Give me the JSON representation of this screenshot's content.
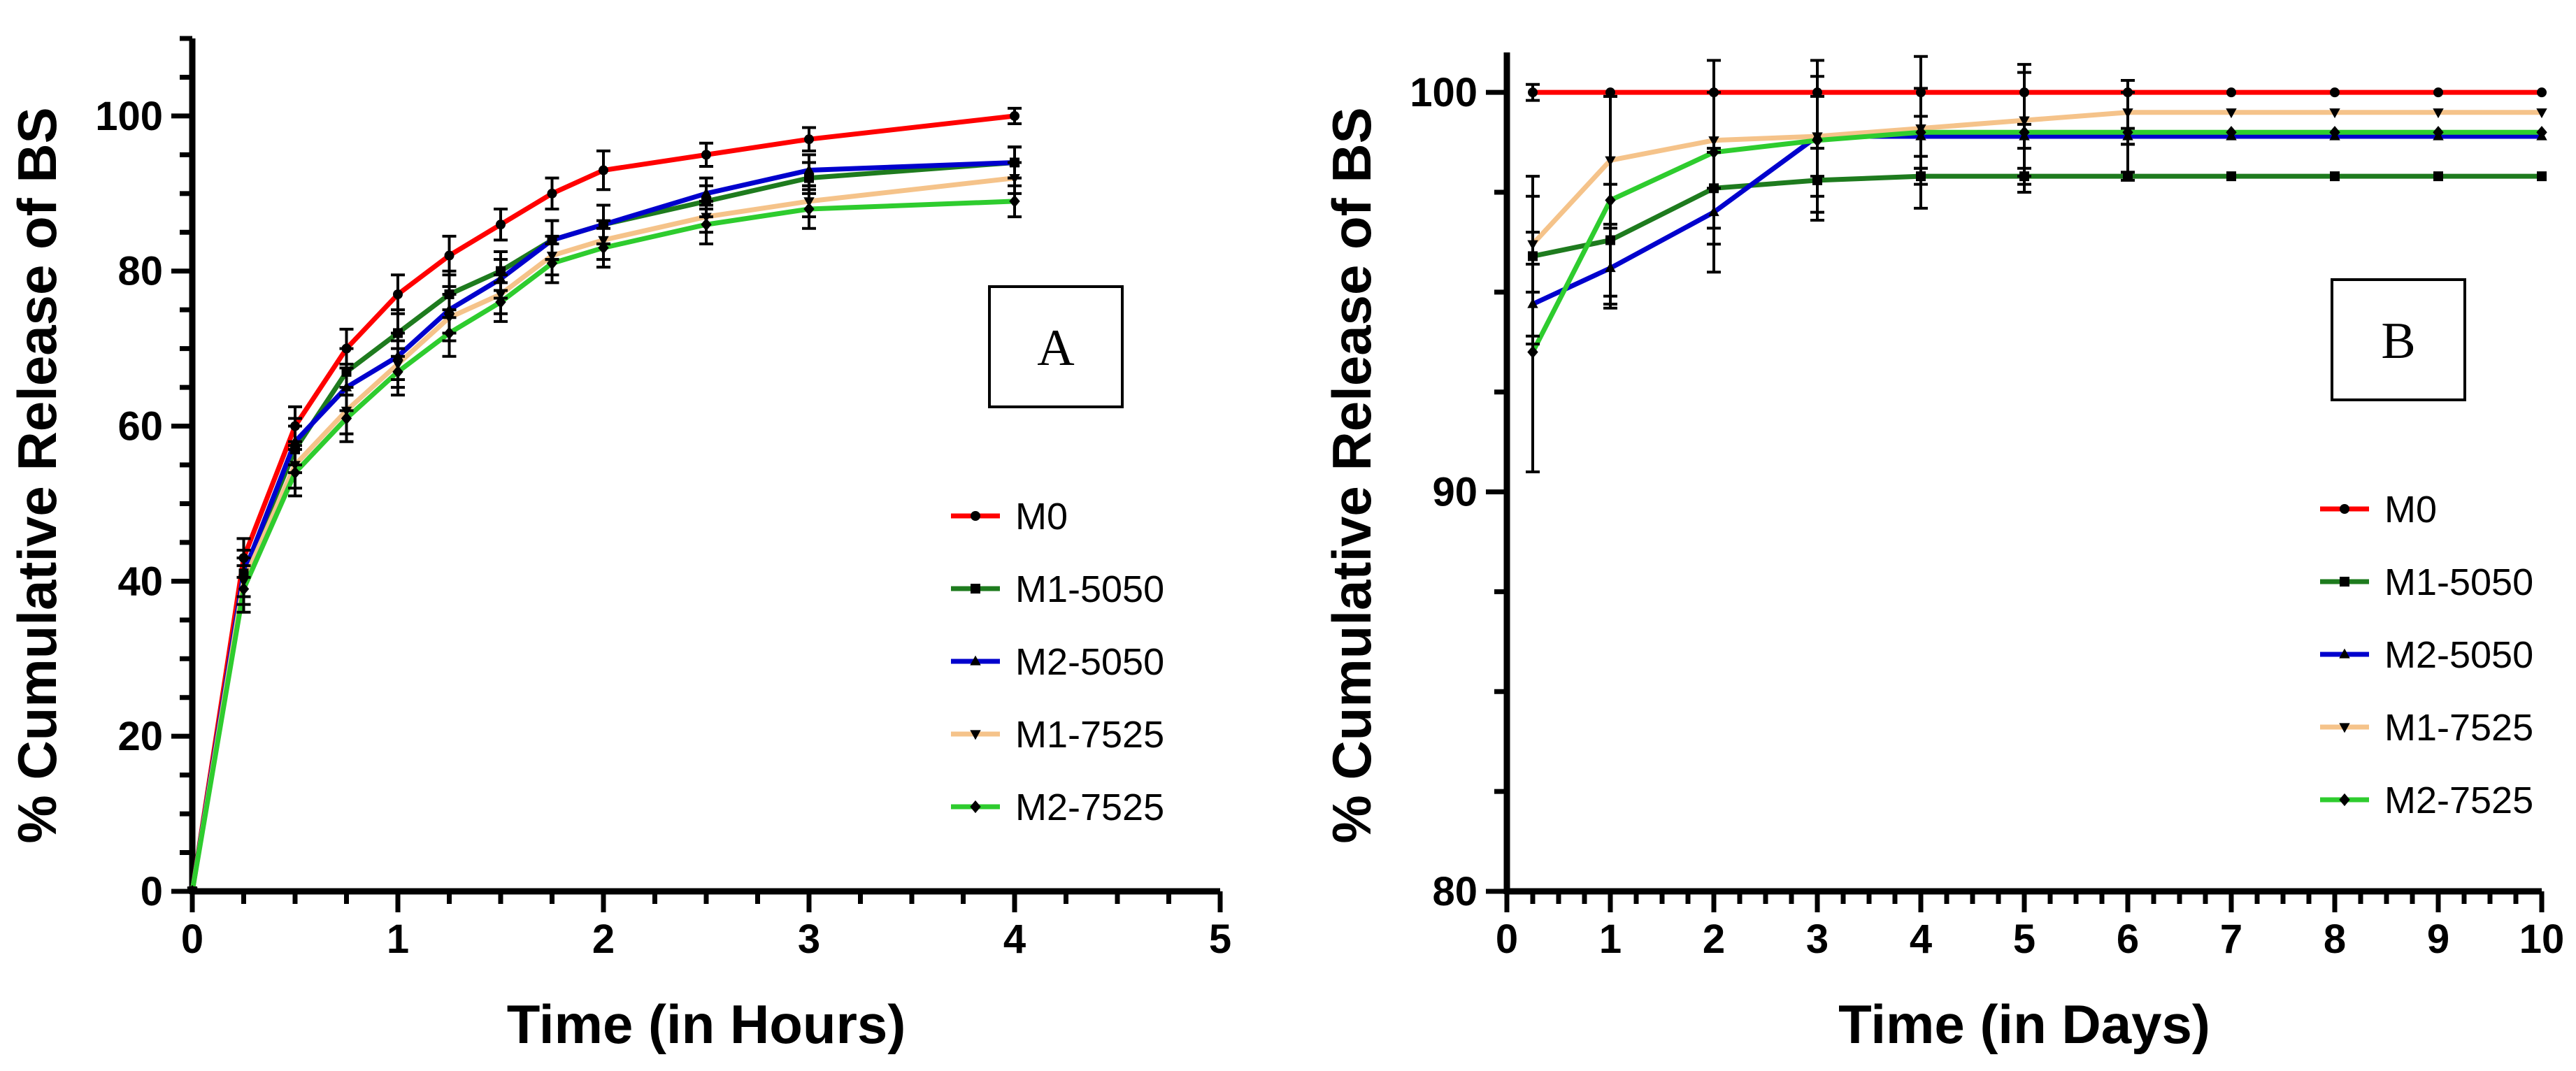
{
  "chart_data": [
    {
      "type": "line",
      "panel": "A",
      "xlabel": "Time (in Hours)",
      "ylabel": "% Cumulative Release of BS",
      "xlim": [
        0,
        5
      ],
      "ylim": [
        0,
        110
      ],
      "xticks": [
        0,
        1,
        2,
        3,
        4,
        5
      ],
      "yticks": [
        0,
        20,
        40,
        60,
        80,
        100
      ],
      "grid": false,
      "legend_position": "right",
      "x": [
        0,
        0.25,
        0.5,
        0.75,
        1,
        1.25,
        1.5,
        1.75,
        2,
        2.5,
        3,
        4
      ],
      "series": [
        {
          "name": "M0",
          "color": "#ff0000",
          "marker": "circle",
          "values": [
            0,
            43,
            60,
            70,
            77,
            82,
            86,
            90,
            93,
            95,
            97,
            100
          ],
          "errors": [
            0,
            2.5,
            2.5,
            2.5,
            2.5,
            2.5,
            2,
            2,
            2.5,
            1.5,
            1.5,
            1
          ]
        },
        {
          "name": "M1-5050",
          "color": "#1e7b1e",
          "marker": "square",
          "values": [
            0,
            41,
            57,
            67,
            72,
            77,
            80,
            84,
            86,
            89,
            92,
            94
          ],
          "errors": [
            0,
            3,
            3,
            3,
            3,
            3,
            2.5,
            2.5,
            2.5,
            2,
            2,
            2
          ]
        },
        {
          "name": "M2-5050",
          "color": "#0000cd",
          "marker": "triangle-up",
          "values": [
            0,
            41,
            58,
            65,
            69,
            75,
            79,
            84,
            86,
            90,
            93,
            94
          ],
          "errors": [
            0,
            3,
            3,
            3,
            3,
            3,
            2.5,
            2.5,
            2.5,
            2,
            2,
            2
          ]
        },
        {
          "name": "M1-7525",
          "color": "#f5c38a",
          "marker": "triangle-down",
          "values": [
            0,
            40,
            55,
            62,
            68,
            74,
            77,
            82,
            84,
            87,
            89,
            92
          ],
          "errors": [
            0,
            3,
            3,
            3,
            3,
            3,
            2.5,
            2.5,
            2.5,
            2,
            2,
            2
          ]
        },
        {
          "name": "M2-7525",
          "color": "#2ecc2e",
          "marker": "diamond",
          "values": [
            0,
            39,
            54,
            61,
            67,
            72,
            76,
            81,
            83,
            86,
            88,
            89
          ],
          "errors": [
            0,
            3,
            3,
            3,
            3,
            3,
            2.5,
            2.5,
            2.5,
            2.5,
            2.5,
            2
          ]
        }
      ]
    },
    {
      "type": "line",
      "panel": "B",
      "xlabel": "Time (in Days)",
      "ylabel": "% Cumulative Release of BS",
      "xlim": [
        0,
        10
      ],
      "ylim": [
        80,
        101
      ],
      "xticks": [
        0,
        1,
        2,
        3,
        4,
        5,
        6,
        7,
        8,
        9,
        10
      ],
      "yticks": [
        80,
        90,
        100
      ],
      "grid": false,
      "legend_position": "right",
      "x": [
        0.25,
        1,
        2,
        3,
        4,
        5,
        6,
        7,
        8,
        9,
        10
      ],
      "series": [
        {
          "name": "M0",
          "color": "#ff0000",
          "marker": "circle",
          "values": [
            100,
            100,
            100,
            100,
            100,
            100,
            100,
            100,
            100,
            100,
            100
          ],
          "errors": [
            0.2,
            0,
            0,
            0,
            0,
            0,
            0,
            0,
            0,
            0,
            0
          ]
        },
        {
          "name": "M1-5050",
          "color": "#1e7b1e",
          "marker": "square",
          "values": [
            95.9,
            96.3,
            97.6,
            97.8,
            97.9,
            97.9,
            97.9,
            97.9,
            97.9,
            97.9,
            97.9
          ],
          "errors": [
            2,
            1.4,
            1,
            0.8,
            0.2,
            0.2,
            0.1,
            0,
            0,
            0,
            0
          ]
        },
        {
          "name": "M2-5050",
          "color": "#0000cd",
          "marker": "triangle-up",
          "values": [
            94.7,
            95.6,
            97,
            98.9,
            98.9,
            98.9,
            98.9,
            98.9,
            98.9,
            98.9,
            98.9
          ],
          "errors": [
            1,
            1,
            1.5,
            1.5,
            0.5,
            0.3,
            0.2,
            0,
            0,
            0,
            0
          ]
        },
        {
          "name": "M1-7525",
          "color": "#f5c38a",
          "marker": "triangle-down",
          "values": [
            96.2,
            98.3,
            98.8,
            98.9,
            99.1,
            99.3,
            99.5,
            99.5,
            99.5,
            99.5,
            99.5
          ],
          "errors": [
            1.2,
            1.6,
            1.2,
            1,
            1,
            1.4,
            0.8,
            0,
            0,
            0,
            0
          ]
        },
        {
          "name": "M2-7525",
          "color": "#2ecc2e",
          "marker": "diamond",
          "values": [
            93.5,
            97.3,
            98.5,
            98.8,
            99,
            99,
            99,
            99,
            99,
            99,
            99
          ],
          "errors": [
            3,
            2.6,
            2.3,
            2,
            1.9,
            1.5,
            1,
            0,
            0,
            0,
            0
          ]
        }
      ]
    }
  ]
}
